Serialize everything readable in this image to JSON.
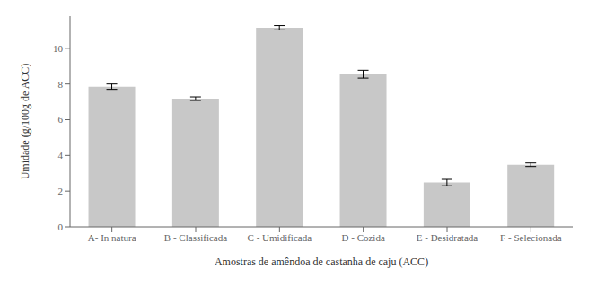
{
  "chart_data": {
    "type": "bar",
    "xlabel": "Amostras de amêndoa de castanha de caju (ACC)",
    "ylabel": "Umidade (g/100g de ACC)",
    "categories": [
      "A- In natura",
      "B - Classificada",
      "C - Umidificada",
      "D - Cozida",
      "E - Desidratada",
      "F - Selecionada"
    ],
    "values": [
      7.85,
      7.18,
      11.15,
      8.55,
      2.48,
      3.48
    ],
    "errors": [
      0.15,
      0.1,
      0.12,
      0.22,
      0.18,
      0.1
    ],
    "color": "#c8c8c8",
    "ylim": [
      0,
      11.8
    ],
    "yticks": [
      0,
      2,
      4,
      6,
      8,
      10
    ],
    "grid": false
  }
}
